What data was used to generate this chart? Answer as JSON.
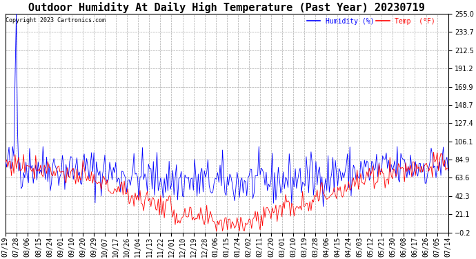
{
  "title": "Outdoor Humidity At Daily High Temperature (Past Year) 20230719",
  "copyright": "Copyright 2023 Cartronics.com",
  "legend_humidity": "Humidity (%)",
  "legend_temp": "Temp  (°F)",
  "ymin": -0.2,
  "ymax": 255.0,
  "yticks": [
    255.0,
    233.7,
    212.5,
    191.2,
    169.9,
    148.7,
    127.4,
    106.1,
    84.9,
    63.6,
    42.3,
    21.1,
    -0.2
  ],
  "color_humidity": "#0000ff",
  "color_temp": "#ff0000",
  "background_color": "#ffffff",
  "grid_color": "#aaaaaa",
  "title_fontsize": 11,
  "tick_fontsize": 7,
  "x_labels": [
    "07/19",
    "07/28",
    "08/06",
    "08/15",
    "08/24",
    "09/01",
    "09/10",
    "09/20",
    "09/29",
    "10/07",
    "10/17",
    "10/26",
    "11/04",
    "11/13",
    "11/22",
    "12/01",
    "12/10",
    "12/19",
    "12/28",
    "01/06",
    "01/15",
    "01/24",
    "02/02",
    "02/11",
    "02/20",
    "03/01",
    "03/10",
    "03/19",
    "03/28",
    "04/06",
    "04/15",
    "04/24",
    "05/03",
    "05/12",
    "05/21",
    "05/30",
    "06/08",
    "06/17",
    "06/26",
    "07/05",
    "07/14"
  ],
  "n_points": 366
}
